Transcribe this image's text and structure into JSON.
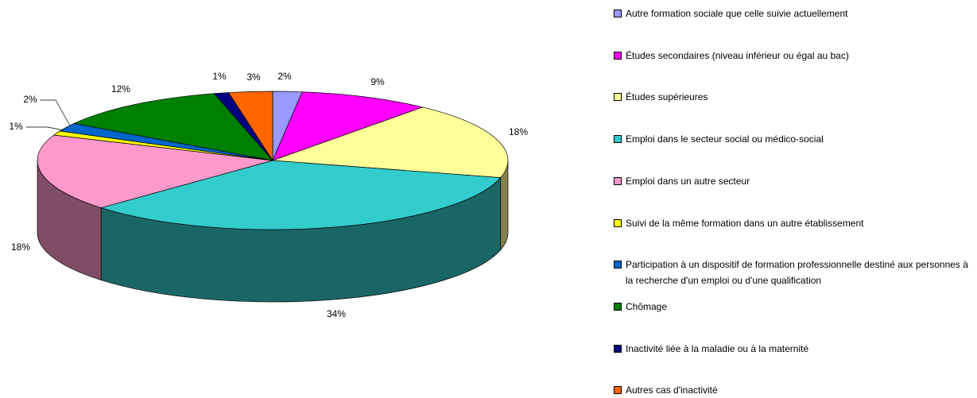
{
  "chart_data": {
    "type": "pie",
    "categories": [
      "Autre formation sociale que celle suivie actuellement",
      "Études secondaires (niveau inférieur ou égal au bac)",
      "Études supérieures",
      "Emploi dans le secteur social ou médico-social",
      "Emploi dans un autre secteur",
      "Suivi de la même formation dans un autre établissement",
      "Participation à un dispositif de formation professionnelle destiné aux personnes à la recherche d'un emploi ou d'une qualification",
      "Chômage",
      "Inactivité liée à la maladie ou à la maternité",
      "Autres cas d'inactivité"
    ],
    "values": [
      2,
      9,
      18,
      34,
      18,
      1,
      2,
      12,
      1,
      3
    ],
    "value_labels": [
      "2%",
      "9%",
      "18%",
      "34%",
      "18%",
      "1%",
      "2%",
      "12%",
      "1%",
      "3%"
    ],
    "colors": [
      "#9999ff",
      "#ff00ff",
      "#ffff99",
      "#33cccc",
      "#ff99cc",
      "#ffff00",
      "#0066cc",
      "#008000",
      "#000080",
      "#ff6600"
    ],
    "legend": "right"
  }
}
